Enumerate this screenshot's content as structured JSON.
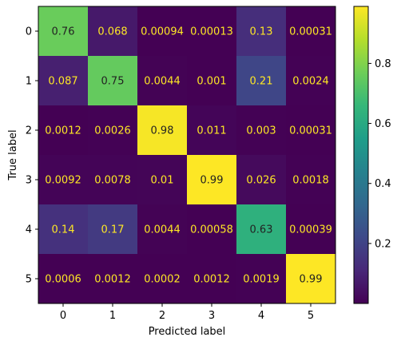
{
  "chart_data": {
    "type": "heatmap",
    "xlabel": "Predicted label",
    "ylabel": "True label",
    "x_categories": [
      "0",
      "1",
      "2",
      "3",
      "4",
      "5"
    ],
    "y_categories": [
      "0",
      "1",
      "2",
      "3",
      "4",
      "5"
    ],
    "values": [
      [
        0.76,
        0.068,
        0.00094,
        0.00013,
        0.13,
        0.00031
      ],
      [
        0.087,
        0.75,
        0.0044,
        0.001,
        0.21,
        0.0024
      ],
      [
        0.0012,
        0.0026,
        0.98,
        0.011,
        0.003,
        0.00031
      ],
      [
        0.0092,
        0.0078,
        0.01,
        0.99,
        0.026,
        0.0018
      ],
      [
        0.14,
        0.17,
        0.0044,
        0.00058,
        0.63,
        0.00039
      ],
      [
        0.0006,
        0.0012,
        0.0002,
        0.0012,
        0.0019,
        0.99
      ]
    ],
    "labels": [
      [
        "0.76",
        "0.068",
        "0.00094",
        "0.00013",
        "0.13",
        "0.00031"
      ],
      [
        "0.087",
        "0.75",
        "0.0044",
        "0.001",
        "0.21",
        "0.0024"
      ],
      [
        "0.0012",
        "0.0026",
        "0.98",
        "0.011",
        "0.003",
        "0.00031"
      ],
      [
        "0.0092",
        "0.0078",
        "0.01",
        "0.99",
        "0.026",
        "0.0018"
      ],
      [
        "0.14",
        "0.17",
        "0.0044",
        "0.00058",
        "0.63",
        "0.00039"
      ],
      [
        "0.0006",
        "0.0012",
        "0.0002",
        "0.0012",
        "0.0019",
        "0.99"
      ]
    ],
    "colormap": "viridis",
    "value_range": [
      0.0001,
      0.99
    ],
    "colorbar": {
      "ticks": [
        0.2,
        0.4,
        0.6,
        0.8
      ],
      "tick_labels": [
        "0.2",
        "0.4",
        "0.6",
        "0.8"
      ]
    },
    "text_color_light": "#fde725",
    "text_color_dark": "#222222",
    "grid": false
  }
}
